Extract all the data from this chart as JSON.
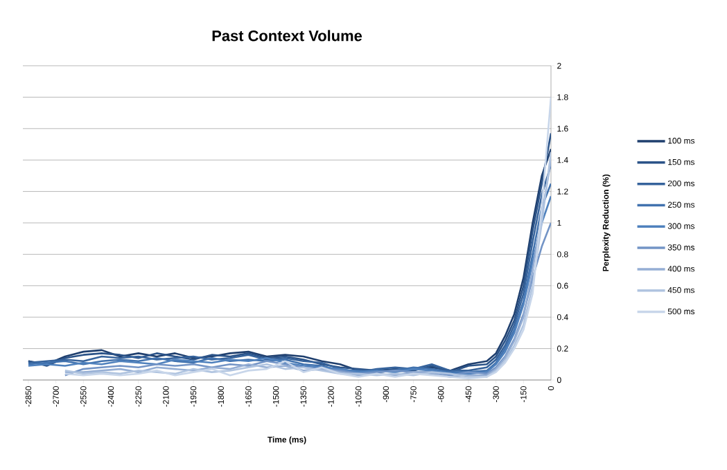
{
  "chart_data": {
    "type": "line",
    "title": "Past Context Volume",
    "xlabel": "Time (ms)",
    "ylabel": "Perplexity Reduction  (%)",
    "x": [
      -2850,
      -2750,
      -2650,
      -2550,
      -2450,
      -2350,
      -2250,
      -2150,
      -2050,
      -1950,
      -1850,
      -1750,
      -1650,
      -1550,
      -1450,
      -1350,
      -1250,
      -1150,
      -1050,
      -950,
      -850,
      -750,
      -650,
      -550,
      -450,
      -350,
      -300,
      -250,
      -200,
      -150,
      -100,
      -50,
      0
    ],
    "series": [
      {
        "name": "100 ms",
        "color": "#1f3f6e",
        "values": [
          0.12,
          0.1,
          0.15,
          0.18,
          0.19,
          0.15,
          0.17,
          0.15,
          0.17,
          0.14,
          0.15,
          0.17,
          0.18,
          0.15,
          0.16,
          0.15,
          0.12,
          0.1,
          0.06,
          0.05,
          0.06,
          0.07,
          0.08,
          0.06,
          0.1,
          0.12,
          0.17,
          0.28,
          0.42,
          0.65,
          1.0,
          1.3,
          1.47
        ]
      },
      {
        "name": "150 ms",
        "color": "#2b5388",
        "values": [
          0.12,
          0.09,
          0.14,
          0.16,
          0.17,
          0.16,
          0.14,
          0.17,
          0.15,
          0.13,
          0.16,
          0.15,
          0.17,
          0.14,
          0.15,
          0.13,
          0.1,
          0.08,
          0.07,
          0.06,
          0.07,
          0.06,
          0.09,
          0.05,
          0.09,
          0.1,
          0.15,
          0.25,
          0.38,
          0.6,
          0.95,
          1.25,
          1.57
        ]
      },
      {
        "name": "200 ms",
        "color": "#36639c",
        "values": [
          0.11,
          0.12,
          0.13,
          0.12,
          0.15,
          0.14,
          0.15,
          0.13,
          0.14,
          0.15,
          0.13,
          0.14,
          0.16,
          0.13,
          0.14,
          0.12,
          0.11,
          0.07,
          0.05,
          0.07,
          0.08,
          0.07,
          0.1,
          0.06,
          0.06,
          0.08,
          0.13,
          0.22,
          0.35,
          0.55,
          0.88,
          1.18,
          1.37
        ]
      },
      {
        "name": "250 ms",
        "color": "#4172ae",
        "values": [
          0.1,
          0.11,
          0.12,
          0.1,
          0.12,
          0.13,
          0.12,
          0.14,
          0.12,
          0.11,
          0.14,
          0.12,
          0.13,
          0.12,
          0.13,
          0.1,
          0.09,
          0.06,
          0.06,
          0.05,
          0.06,
          0.08,
          0.07,
          0.05,
          0.05,
          0.06,
          0.11,
          0.2,
          0.32,
          0.5,
          0.8,
          1.1,
          1.25
        ]
      },
      {
        "name": "300 ms",
        "color": "#4f81bd",
        "values": [
          0.09,
          0.1,
          0.09,
          0.11,
          0.1,
          0.12,
          0.11,
          0.1,
          0.13,
          0.12,
          0.11,
          0.13,
          0.12,
          0.14,
          0.11,
          0.09,
          0.08,
          0.07,
          0.05,
          0.06,
          0.05,
          0.07,
          0.06,
          0.04,
          0.04,
          0.05,
          0.1,
          0.18,
          0.3,
          0.48,
          0.75,
          1.0,
          1.17
        ]
      },
      {
        "name": "350 ms",
        "color": "#7394c6",
        "values": [
          null,
          null,
          0.03,
          0.07,
          0.08,
          0.09,
          0.08,
          0.1,
          0.09,
          0.1,
          0.08,
          0.1,
          0.09,
          0.12,
          0.1,
          0.08,
          0.07,
          0.06,
          0.04,
          0.05,
          0.06,
          0.05,
          0.05,
          0.03,
          0.05,
          0.04,
          0.08,
          0.15,
          0.26,
          0.42,
          0.65,
          0.85,
          1.0
        ]
      },
      {
        "name": "400 ms",
        "color": "#95aed4",
        "values": [
          null,
          null,
          0.05,
          0.05,
          0.06,
          0.07,
          0.05,
          0.08,
          0.07,
          0.06,
          0.08,
          0.07,
          0.1,
          0.08,
          0.09,
          0.06,
          0.07,
          0.05,
          0.03,
          0.04,
          0.03,
          0.05,
          0.04,
          0.02,
          0.03,
          0.03,
          0.07,
          0.14,
          0.25,
          0.4,
          0.7,
          1.05,
          1.4
        ]
      },
      {
        "name": "450 ms",
        "color": "#b0c4e0",
        "values": [
          null,
          null,
          0.06,
          0.04,
          0.05,
          0.04,
          0.06,
          0.05,
          0.04,
          0.07,
          0.05,
          0.06,
          0.08,
          0.1,
          0.07,
          0.08,
          0.06,
          0.04,
          0.04,
          0.03,
          0.04,
          0.03,
          0.05,
          0.04,
          0.02,
          0.02,
          0.06,
          0.12,
          0.22,
          0.35,
          0.6,
          1.0,
          1.45
        ]
      },
      {
        "name": "500 ms",
        "color": "#c8d6ea",
        "values": [
          null,
          null,
          0.04,
          0.03,
          0.04,
          0.03,
          0.04,
          0.06,
          0.03,
          0.05,
          0.07,
          0.03,
          0.06,
          0.07,
          0.12,
          0.05,
          0.08,
          0.04,
          0.02,
          0.04,
          0.02,
          0.04,
          0.03,
          0.02,
          0.01,
          0.02,
          0.05,
          0.11,
          0.2,
          0.32,
          0.55,
          1.1,
          1.8
        ]
      }
    ],
    "xlim": [
      -2880,
      0
    ],
    "xticks": [
      -2850,
      -2700,
      -2550,
      -2400,
      -2250,
      -2100,
      -1950,
      -1800,
      -1650,
      -1500,
      -1350,
      -1200,
      -1050,
      -900,
      -750,
      -600,
      -450,
      -300,
      -150,
      0
    ],
    "ylim": [
      0,
      2
    ],
    "yticks": [
      0,
      0.2,
      0.4,
      0.6,
      0.8,
      1,
      1.2,
      1.4,
      1.6,
      1.8,
      2
    ],
    "grid": "y",
    "legend": "right",
    "marker": "none",
    "line_style": "solid"
  }
}
